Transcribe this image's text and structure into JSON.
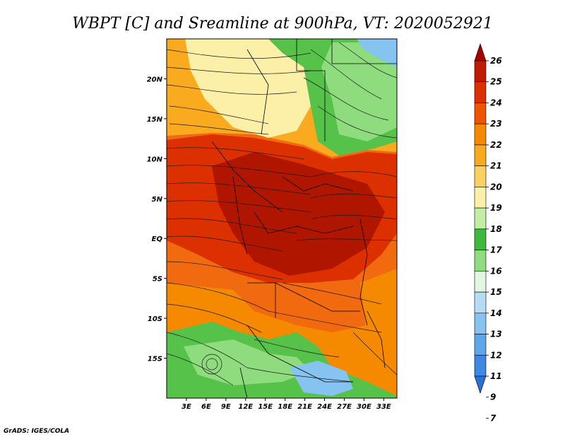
{
  "title": "WBPT [C] and Sreamline at 900hPa, VT: 2020052921",
  "credit": "GrADS: IGES/COLA",
  "map": {
    "lon_range": [
      0,
      35
    ],
    "lat_range": [
      -20,
      25
    ],
    "y_tick_labels": [
      {
        "lat": 20,
        "label": "20N"
      },
      {
        "lat": 15,
        "label": "15N"
      },
      {
        "lat": 10,
        "label": "10N"
      },
      {
        "lat": 5,
        "label": "5N"
      },
      {
        "lat": 0,
        "label": "EQ"
      },
      {
        "lat": -5,
        "label": "5S"
      },
      {
        "lat": -10,
        "label": "10S"
      },
      {
        "lat": -15,
        "label": "15S"
      }
    ],
    "x_tick_labels": [
      {
        "lon": 3,
        "label": "3E"
      },
      {
        "lon": 6,
        "label": "6E"
      },
      {
        "lon": 9,
        "label": "9E"
      },
      {
        "lon": 12,
        "label": "12E"
      },
      {
        "lon": 15,
        "label": "15E"
      },
      {
        "lon": 18,
        "label": "18E"
      },
      {
        "lon": 21,
        "label": "21E"
      },
      {
        "lon": 24,
        "label": "24E"
      },
      {
        "lon": 27,
        "label": "27E"
      },
      {
        "lon": 30,
        "label": "30E"
      },
      {
        "lon": 33,
        "label": "33E"
      }
    ]
  },
  "colorbar": {
    "labels": [
      "26",
      "25",
      "24",
      "23",
      "22",
      "21",
      "20",
      "19",
      "18",
      "17",
      "16",
      "15",
      "14",
      "13",
      "12",
      "11",
      "9",
      "7"
    ],
    "colors": [
      "#a50000",
      "#c11a00",
      "#dd3000",
      "#ef5500",
      "#f58a00",
      "#f9aa1f",
      "#fbd060",
      "#fcefa8",
      "#c3eea4",
      "#3fb83c",
      "#8fdc7e",
      "#e2f7e2",
      "#b5dcf5",
      "#86c3f0",
      "#5ea6ea",
      "#3d88e2",
      "#2a6ed8"
    ]
  }
}
